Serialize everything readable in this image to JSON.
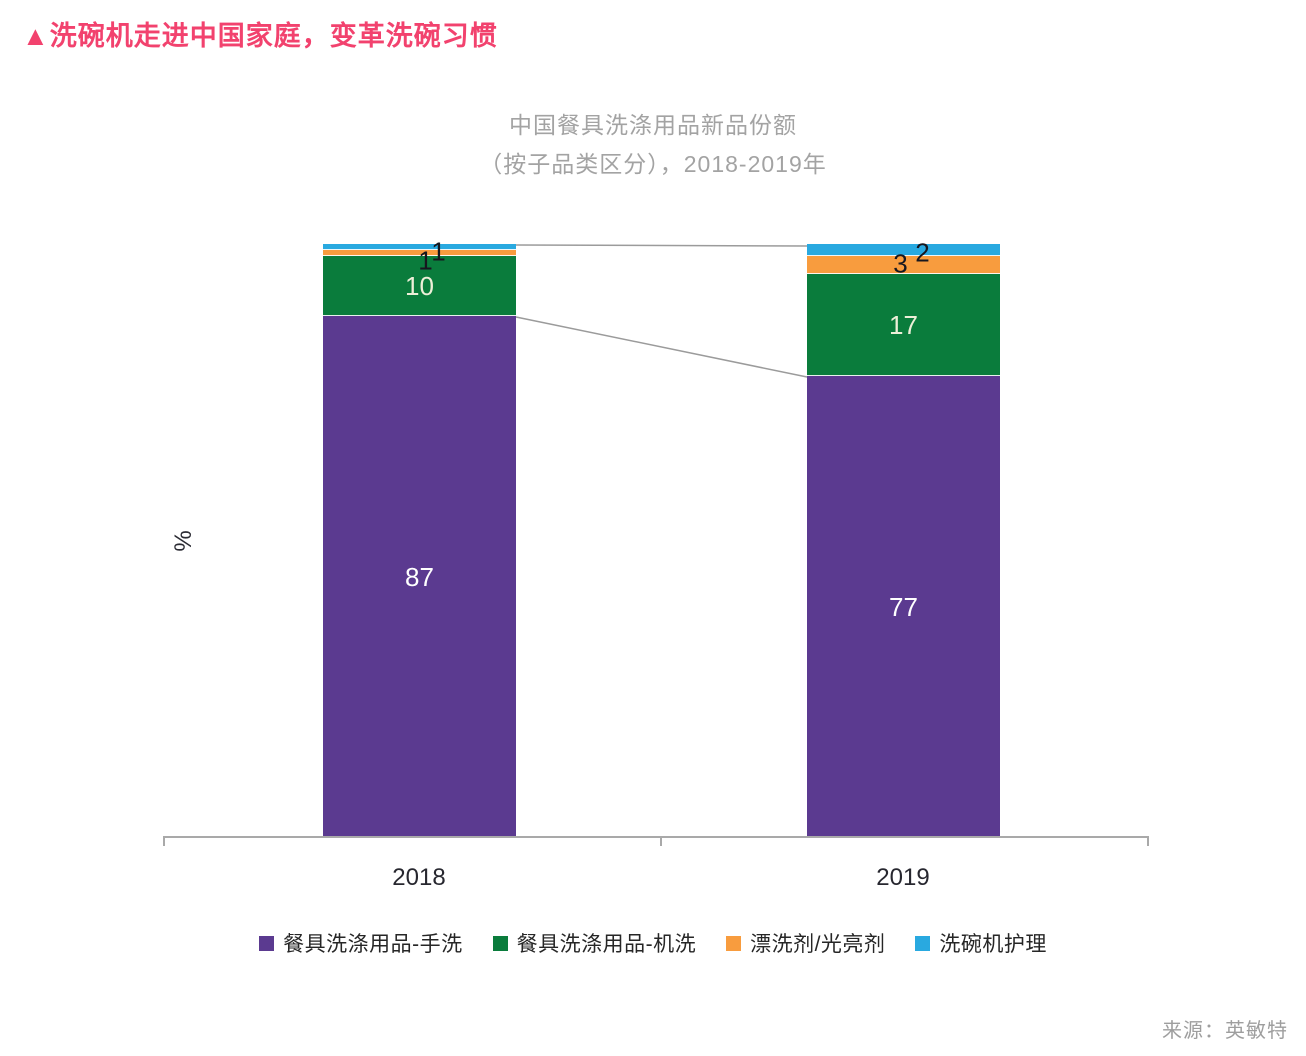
{
  "page": {
    "title": "▲洗碗机走进中国家庭，变革洗碗习惯"
  },
  "chart": {
    "title_line1": "中国餐具洗涤用品新品份额",
    "title_line2": "（按子品类区分），2018-2019年",
    "source": "来源：英敏特"
  },
  "chart_data": {
    "type": "bar",
    "subtype": "stacked-column",
    "title": "中国餐具洗涤用品新品份额（按子品类区分），2018-2019年",
    "xlabel": "",
    "ylabel": "%",
    "value_unit": "%",
    "ylim": [
      0,
      100
    ],
    "grid": false,
    "legend_position": "bottom",
    "categories": [
      "2018",
      "2019"
    ],
    "series": [
      {
        "name": "餐具洗涤用品-手洗",
        "color": "#5B3A90",
        "values": [
          87,
          77
        ]
      },
      {
        "name": "餐具洗涤用品-机洗",
        "color": "#0A7C3C",
        "values": [
          10,
          17
        ]
      },
      {
        "name": "漂洗剂/光亮剂",
        "color": "#F89C3E",
        "values": [
          1,
          3
        ]
      },
      {
        "name": "洗碗机护理",
        "color": "#29A9E0",
        "values": [
          1,
          2
        ]
      }
    ]
  },
  "colors": {
    "title_accent": "#F2426E",
    "chart_title_text": "#A3A3A3",
    "axis": "#A9A9A9",
    "connector": "#9B9B9B",
    "x_label_text": "#27272F",
    "legend_text": "#262626",
    "label_on_purple": "#FFFFFF",
    "label_on_green": "#EDEFD8",
    "label_dark": "#17171F",
    "source_text": "#9E9E9E"
  }
}
